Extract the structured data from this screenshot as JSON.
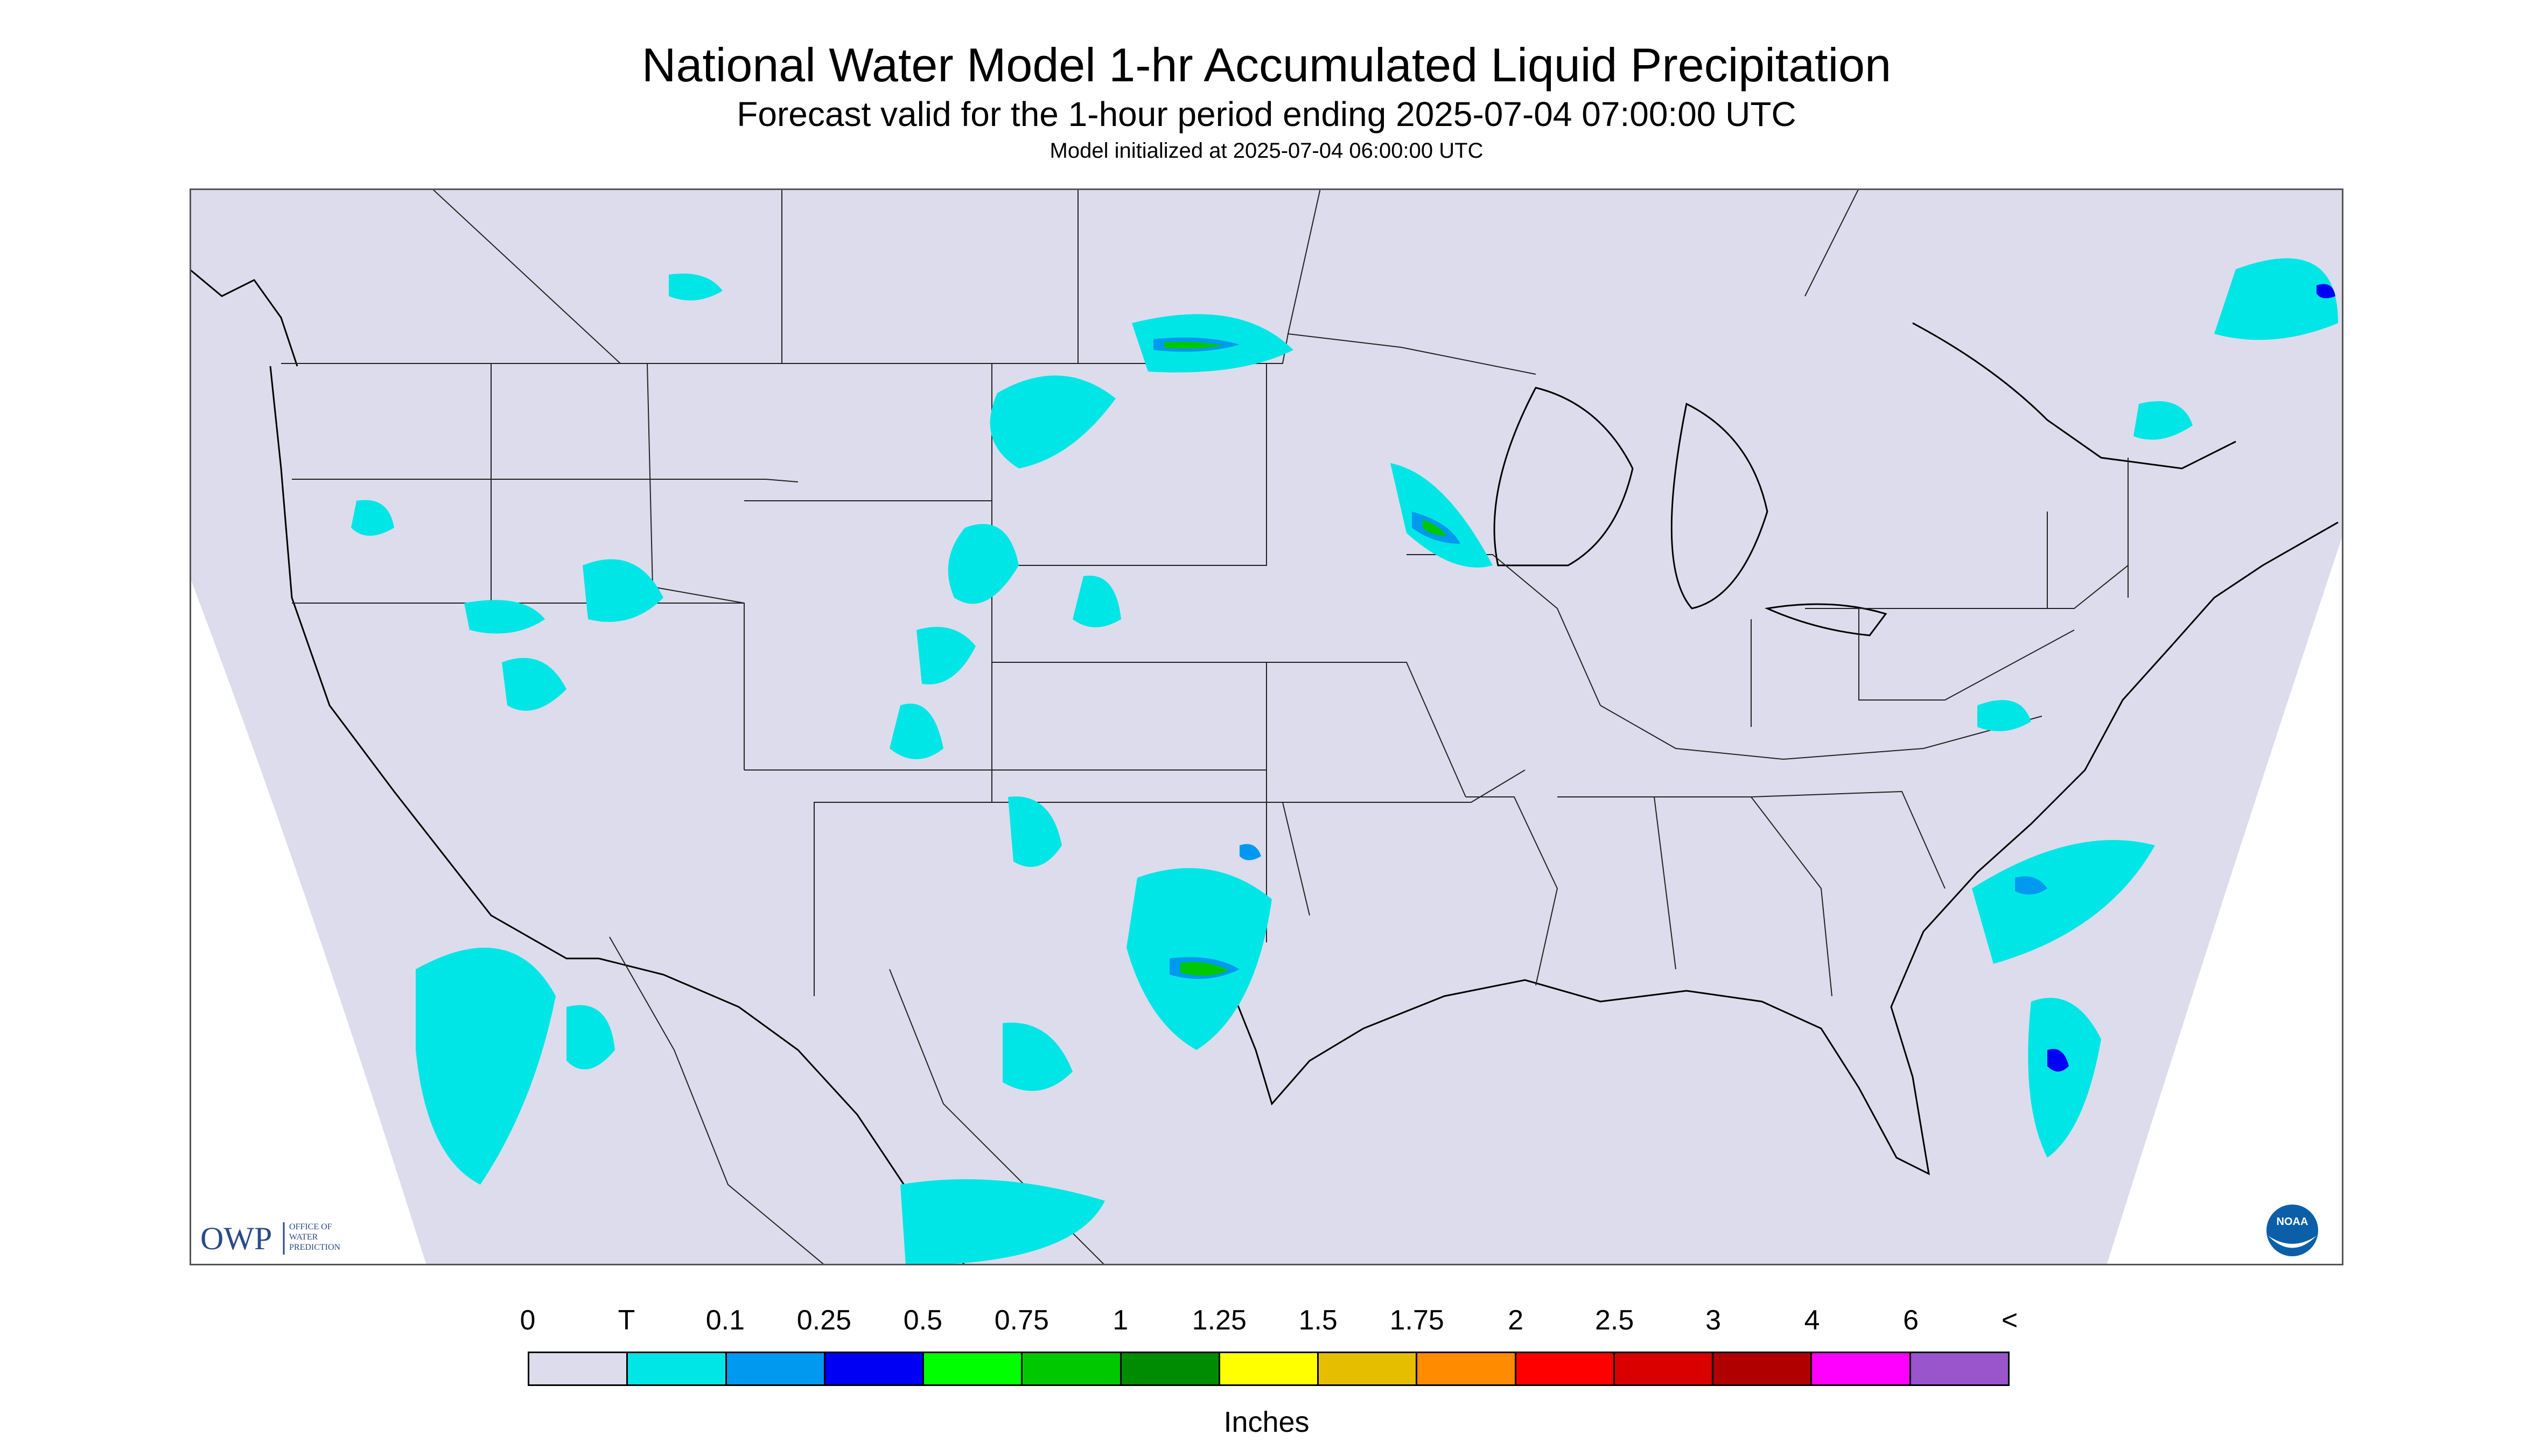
{
  "header": {
    "title": "National Water Model 1-hr Accumulated Liquid Precipitation",
    "subtitle": "Forecast valid for the 1-hour period ending 2025-07-04 07:00:00 UTC",
    "init": "Model initialized at 2025-07-04 06:00:00 UTC"
  },
  "logos": {
    "owp_mark": "OWP",
    "owp_text": [
      "OFFICE OF",
      "WATER",
      "PREDICTION"
    ],
    "noaa": "NOAA"
  },
  "colors": {
    "background": "#dcdcec",
    "ocean_outside": "#dcdcec",
    "border": "#000000"
  },
  "legend": {
    "labels": [
      "0",
      "T",
      "0.1",
      "0.25",
      "0.5",
      "0.75",
      "1",
      "1.25",
      "1.5",
      "1.75",
      "2",
      "2.5",
      "3",
      "4",
      "6",
      "<"
    ],
    "colors": [
      "#dcdcec",
      "#00e6e6",
      "#0099f0",
      "#0000f5",
      "#00ff00",
      "#00c800",
      "#008c00",
      "#ffff00",
      "#e6be00",
      "#ff8c00",
      "#ff0000",
      "#d90000",
      "#b00000",
      "#ff00ff",
      "#9955cc"
    ],
    "units": "Inches"
  }
}
